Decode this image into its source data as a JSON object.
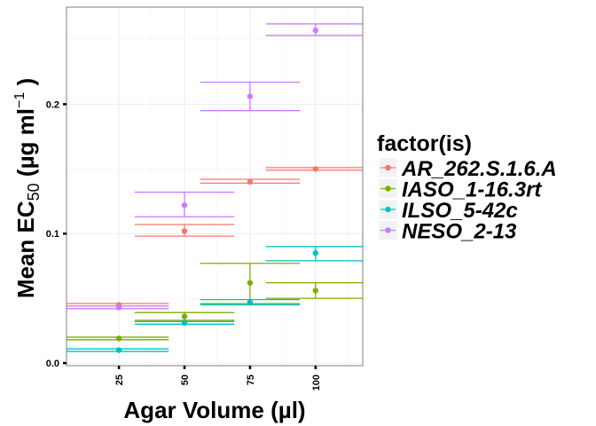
{
  "chart_data": {
    "type": "scatter",
    "x_label": "Agar Volume (µl)",
    "y_label": {
      "prefix": "Mean EC",
      "subscript": "50",
      "unit_open": " (µg ml",
      "superscript": "−1",
      "unit_close": " )"
    },
    "x_ticks": [
      "25",
      "50",
      "75",
      "100"
    ],
    "y_ticks": [
      "0.0",
      "0.1",
      "0.2"
    ],
    "x_range": [
      5,
      118
    ],
    "y_range": [
      -0.002,
      0.275
    ],
    "grid": true,
    "legend": {
      "title": "factor(is)",
      "position": "right"
    },
    "series": [
      {
        "name": "AR_262.S.1.6.A",
        "color": "#F8766D",
        "points": [
          {
            "x": 25,
            "y": 0.045,
            "low": 0.044,
            "high": 0.046,
            "xmin": 5,
            "xmax": 44
          },
          {
            "x": 50,
            "y": 0.102,
            "low": 0.098,
            "high": 0.107,
            "xmin": 31,
            "xmax": 69
          },
          {
            "x": 75,
            "y": 0.14,
            "low": 0.139,
            "high": 0.142,
            "xmin": 56,
            "xmax": 94
          },
          {
            "x": 100,
            "y": 0.15,
            "low": 0.149,
            "high": 0.151,
            "xmin": 81,
            "xmax": 118
          }
        ]
      },
      {
        "name": "IASO_1-16.3rt",
        "color": "#7CAE00",
        "points": [
          {
            "x": 25,
            "y": 0.019,
            "low": 0.018,
            "high": 0.02,
            "xmin": 5,
            "xmax": 44
          },
          {
            "x": 50,
            "y": 0.036,
            "low": 0.033,
            "high": 0.039,
            "xmin": 31,
            "xmax": 69
          },
          {
            "x": 75,
            "y": 0.062,
            "low": 0.046,
            "high": 0.077,
            "xmin": 56,
            "xmax": 94
          },
          {
            "x": 100,
            "y": 0.056,
            "low": 0.05,
            "high": 0.062,
            "xmin": 81,
            "xmax": 118
          }
        ]
      },
      {
        "name": "ILSO_5-42c",
        "color": "#00BFC4",
        "points": [
          {
            "x": 25,
            "y": 0.01,
            "low": 0.009,
            "high": 0.011,
            "xmin": 5,
            "xmax": 44
          },
          {
            "x": 50,
            "y": 0.031,
            "low": 0.03,
            "high": 0.032,
            "xmin": 31,
            "xmax": 69
          },
          {
            "x": 75,
            "y": 0.047,
            "low": 0.045,
            "high": 0.049,
            "xmin": 56,
            "xmax": 94
          },
          {
            "x": 100,
            "y": 0.085,
            "low": 0.079,
            "high": 0.09,
            "xmin": 81,
            "xmax": 118
          }
        ]
      },
      {
        "name": "NESO_2-13",
        "color": "#C77CFF",
        "points": [
          {
            "x": 25,
            "y": 0.043,
            "low": 0.042,
            "high": 0.044,
            "xmin": 5,
            "xmax": 44
          },
          {
            "x": 50,
            "y": 0.122,
            "low": 0.113,
            "high": 0.132,
            "xmin": 31,
            "xmax": 69
          },
          {
            "x": 75,
            "y": 0.206,
            "low": 0.195,
            "high": 0.217,
            "xmin": 56,
            "xmax": 94
          },
          {
            "x": 100,
            "y": 0.257,
            "low": 0.253,
            "high": 0.262,
            "xmin": 81,
            "xmax": 118
          }
        ]
      }
    ]
  }
}
